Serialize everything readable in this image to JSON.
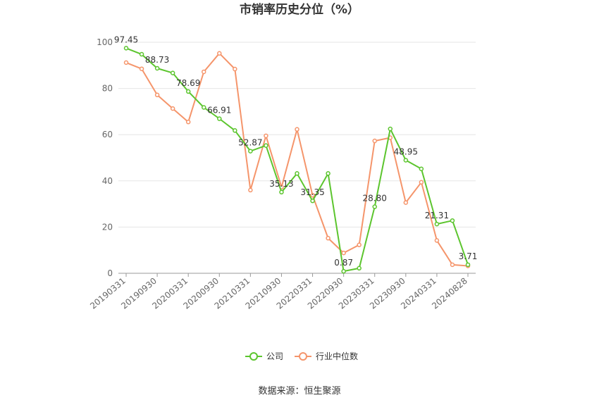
{
  "chart_data": {
    "type": "line",
    "title": "市销率历史分位（%）",
    "ylim": [
      0,
      100
    ],
    "yticks": [
      0,
      20,
      40,
      60,
      80,
      100
    ],
    "x": [
      "20190331",
      "20190630",
      "20190930",
      "20191231",
      "20200331",
      "20200630",
      "20200930",
      "20201231",
      "20210331",
      "20210630",
      "20210930",
      "20211231",
      "20220331",
      "20220630",
      "20220930",
      "20221231",
      "20230331",
      "20230630",
      "20230930",
      "20231231",
      "20240331",
      "20240630",
      "20240828"
    ],
    "x_tick_labels": [
      "20190331",
      "20190930",
      "20200331",
      "20200930",
      "20210331",
      "20210930",
      "20220331",
      "20220930",
      "20230331",
      "20230930",
      "20240331",
      "20240828"
    ],
    "series": [
      {
        "name": "公司",
        "color": "#5cc52e",
        "values": [
          97.45,
          94.8,
          88.73,
          86.7,
          78.69,
          71.8,
          66.91,
          61.8,
          52.87,
          55.3,
          35.13,
          43.2,
          31.35,
          43.2,
          0.87,
          2.2,
          28.8,
          62.5,
          48.95,
          45.2,
          21.31,
          22.8,
          3.71
        ],
        "labels": {
          "0": "97.45",
          "2": "88.73",
          "4": "78.69",
          "6": "66.91",
          "8": "52.87",
          "10": "35.13",
          "12": "31.35",
          "14": "0.87",
          "16": "28.80",
          "18": "48.95",
          "20": "21.31",
          "22": "3.71"
        }
      },
      {
        "name": "行业中位数",
        "color": "#f5956b",
        "values": [
          91.2,
          88.5,
          77.2,
          71.3,
          65.5,
          87.2,
          95.2,
          88.4,
          36.0,
          59.5,
          37.3,
          62.3,
          33.8,
          15.2,
          8.8,
          12.3,
          57.3,
          58.7,
          30.6,
          39.4,
          14.2,
          3.7,
          3.2
        ]
      }
    ],
    "legend_position": "bottom-center",
    "grid": true
  },
  "source_text": "数据来源：恒生聚源"
}
